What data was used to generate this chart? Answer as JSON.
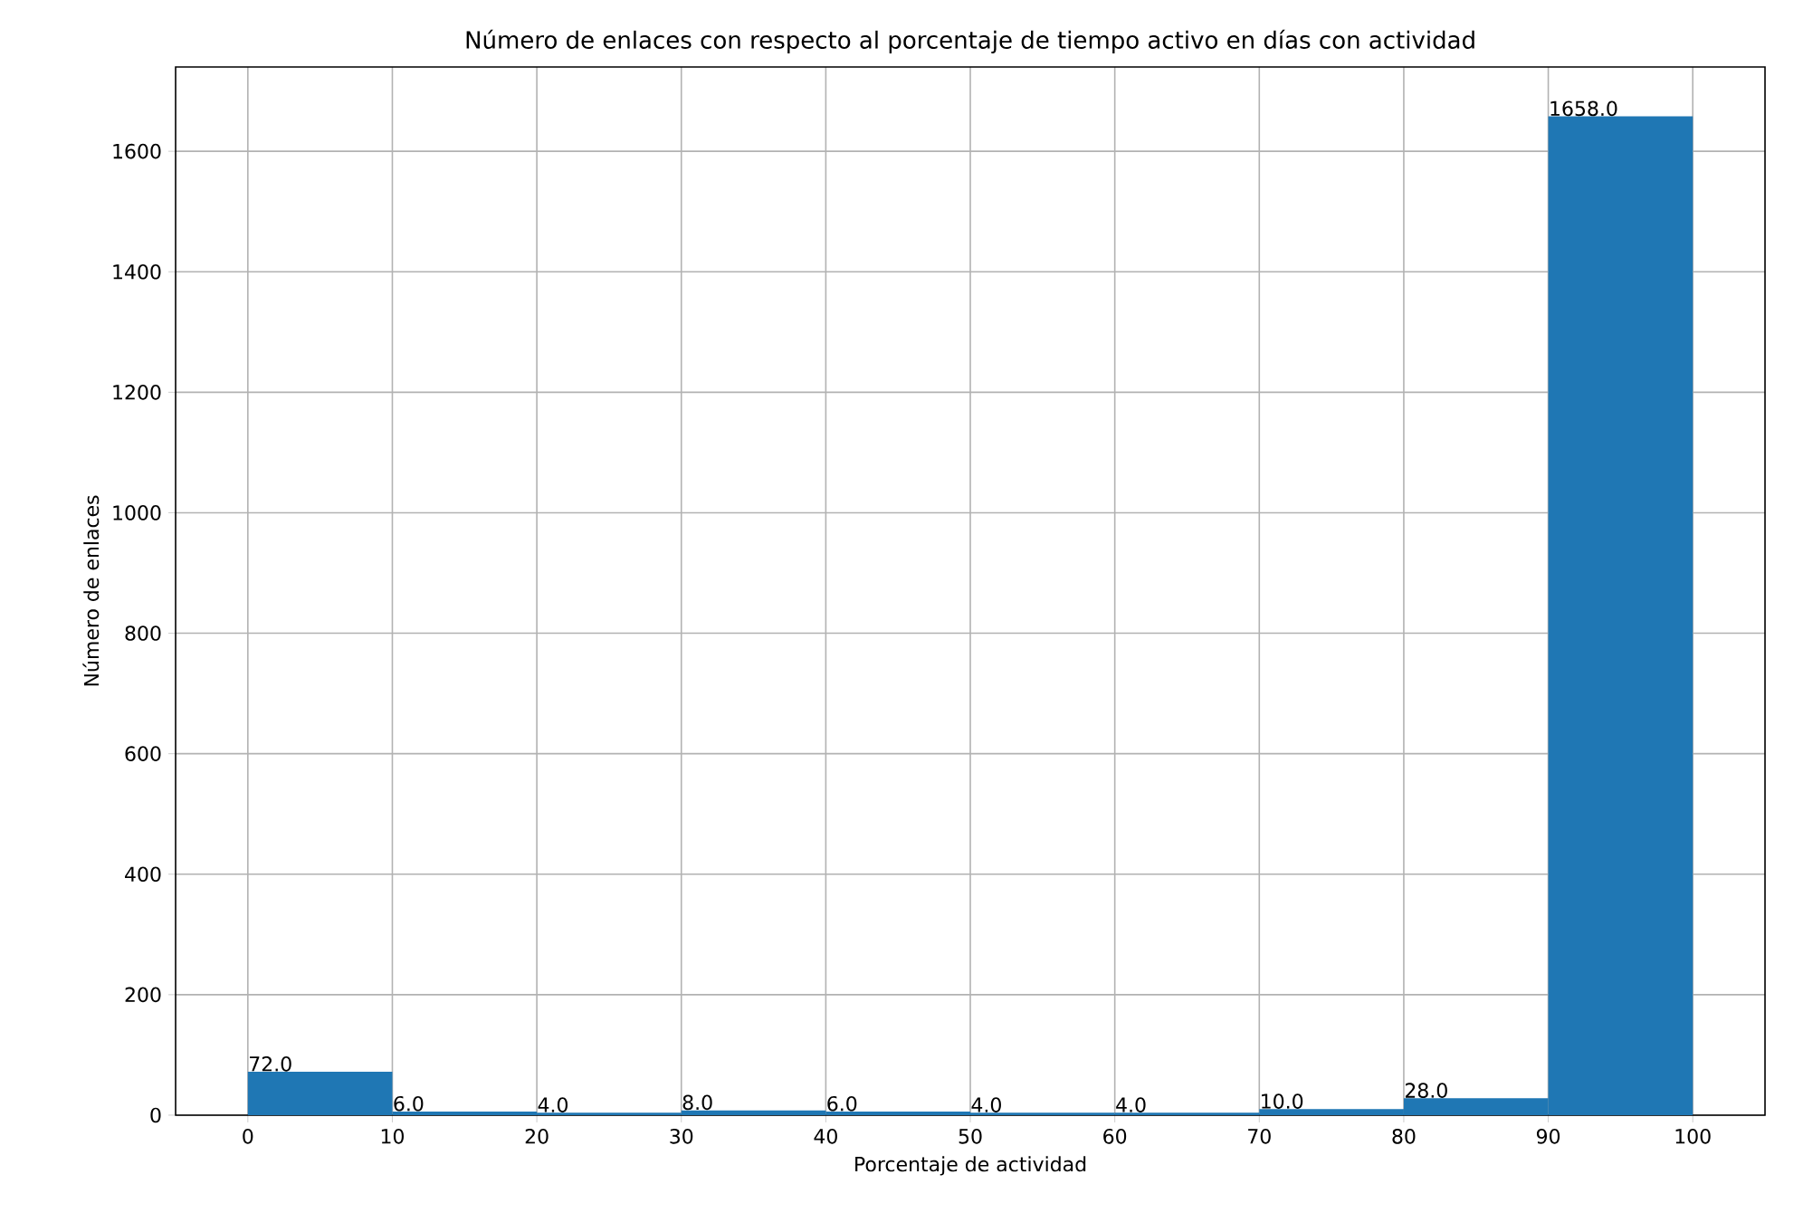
{
  "chart_data": {
    "type": "histogram",
    "title": "Número de enlaces con respecto al porcentaje de tiempo activo en días con actividad",
    "xlabel": "Porcentaje de actividad",
    "ylabel": "Número de enlaces",
    "bins": [
      0,
      10,
      20,
      30,
      40,
      50,
      60,
      70,
      80,
      90,
      100
    ],
    "values": [
      72,
      6,
      4,
      8,
      6,
      4,
      4,
      10,
      28,
      1658
    ],
    "value_labels": [
      "72.0",
      "6.0",
      "4.0",
      "8.0",
      "6.0",
      "4.0",
      "4.0",
      "10.0",
      "28.0",
      "1658.0"
    ],
    "color": "#1f77b4",
    "xlim": [
      -5,
      105
    ],
    "xticks": [
      0,
      10,
      20,
      30,
      40,
      50,
      60,
      70,
      80,
      90,
      100
    ],
    "ylim": [
      0,
      1740
    ],
    "yticks": [
      0,
      200,
      400,
      600,
      800,
      1000,
      1200,
      1400,
      1600
    ],
    "grid": true
  }
}
